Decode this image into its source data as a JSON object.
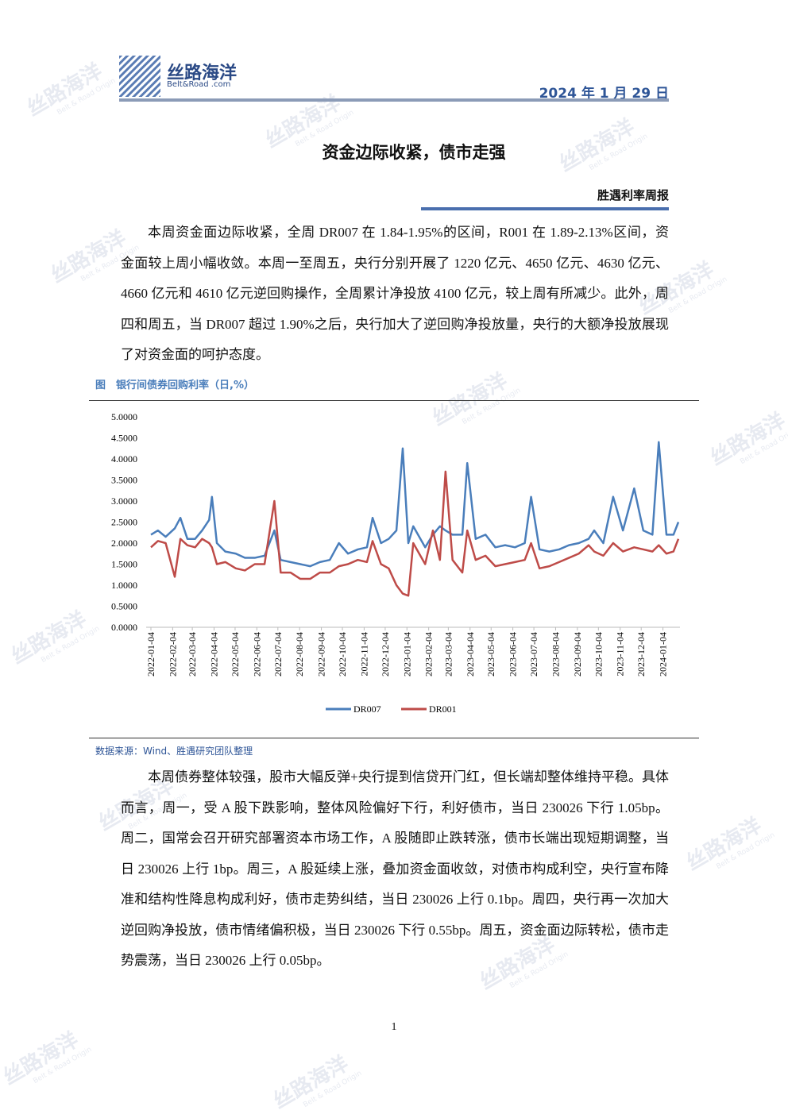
{
  "header": {
    "logo_cn": "丝路海洋",
    "logo_en": "Belt&Road .com",
    "date": "2024 年 1 月 29 日"
  },
  "watermark": {
    "cn": "丝路海洋",
    "en": "Belt & Road Origin"
  },
  "title": "资金边际收紧，债市走强",
  "column": "胜遇利率周报",
  "paragraphs": [
    "本周资金面边际收紧，全周 DR007 在 1.84-1.95%的区间，R001 在 1.89-2.13%区间，资金面较上周小幅收敛。本周一至周五，央行分别开展了 1220 亿元、4650 亿元、4630 亿元、4660 亿元和 4610 亿元逆回购操作，全周累计净投放 4100 亿元，较上周有所减少。此外，周四和周五，当 DR007 超过 1.90%之后，央行加大了逆回购净投放量，央行的大额净投放展现了对资金面的呵护态度。",
    "本周债券整体较强，股市大幅反弹+央行提到信贷开门红，但长端却整体维持平稳。具体而言，周一，受 A 股下跌影响，整体风险偏好下行，利好债市，当日 230026 下行 1.05bp。周二，国常会召开研究部署资本市场工作，A 股随即止跌转涨，债市长端出现短期调整，当日 230026 上行 1bp。周三，A 股延续上涨，叠加资金面收敛，对债市构成利空，央行宣布降准和结构性降息构成利好，债市走势纠结，当日 230026 上行 0.1bp。周四，央行再一次加大逆回购净投放，债市情绪偏积极，当日 230026 下行 0.55bp。周五，资金面边际转松，债市走势震荡，当日 230026 上行 0.05bp。"
  ],
  "figure_caption": "图　银行间债券回购利率（日,%）",
  "source": "数据来源：Wind、胜遇研究团队整理",
  "page_number": "1",
  "chart_data": {
    "type": "line",
    "x": [
      "2022-01-04",
      "2022-01-14",
      "2022-01-25",
      "2022-02-07",
      "2022-02-15",
      "2022-02-25",
      "2022-03-08",
      "2022-03-18",
      "2022-03-28",
      "2022-04-01",
      "2022-04-08",
      "2022-04-20",
      "2022-05-05",
      "2022-05-18",
      "2022-06-01",
      "2022-06-15",
      "2022-06-29",
      "2022-07-08",
      "2022-07-22",
      "2022-08-05",
      "2022-08-19",
      "2022-09-02",
      "2022-09-16",
      "2022-09-29",
      "2022-10-12",
      "2022-10-26",
      "2022-11-08",
      "2022-11-16",
      "2022-11-28",
      "2022-12-09",
      "2022-12-20",
      "2022-12-29",
      "2023-01-06",
      "2023-01-13",
      "2023-01-30",
      "2023-02-10",
      "2023-02-20",
      "2023-02-28",
      "2023-03-10",
      "2023-03-24",
      "2023-03-31",
      "2023-04-12",
      "2023-04-26",
      "2023-05-10",
      "2023-05-24",
      "2023-06-07",
      "2023-06-21",
      "2023-06-30",
      "2023-07-12",
      "2023-07-26",
      "2023-08-09",
      "2023-08-23",
      "2023-09-06",
      "2023-09-20",
      "2023-09-28",
      "2023-10-11",
      "2023-10-25",
      "2023-11-08",
      "2023-11-24",
      "2023-12-07",
      "2023-12-20",
      "2023-12-29",
      "2024-01-09",
      "2024-01-19",
      "2024-01-26"
    ],
    "series": [
      {
        "name": "DR007",
        "color": "#4a7ebb",
        "values": [
          2.2,
          2.3,
          2.15,
          2.35,
          2.6,
          2.1,
          2.1,
          2.3,
          2.55,
          3.1,
          2.0,
          1.8,
          1.75,
          1.65,
          1.65,
          1.7,
          2.3,
          1.6,
          1.55,
          1.5,
          1.45,
          1.55,
          1.6,
          2.0,
          1.75,
          1.85,
          1.9,
          2.6,
          2.0,
          2.1,
          2.3,
          4.25,
          2.0,
          2.4,
          1.9,
          2.2,
          2.4,
          2.3,
          2.2,
          2.2,
          3.9,
          2.1,
          2.2,
          1.9,
          1.95,
          1.9,
          2.0,
          3.1,
          1.85,
          1.8,
          1.85,
          1.95,
          2.0,
          2.1,
          2.3,
          2.0,
          3.1,
          2.3,
          3.3,
          2.3,
          2.2,
          4.4,
          2.2,
          2.2,
          2.5
        ]
      },
      {
        "name": "DR001",
        "color": "#be4b48",
        "values": [
          1.9,
          2.05,
          2.0,
          1.2,
          2.1,
          1.95,
          1.9,
          2.1,
          2.0,
          1.9,
          1.5,
          1.55,
          1.4,
          1.35,
          1.5,
          1.5,
          3.0,
          1.3,
          1.3,
          1.15,
          1.15,
          1.3,
          1.3,
          1.45,
          1.5,
          1.6,
          1.55,
          2.05,
          1.5,
          1.4,
          1.0,
          0.8,
          0.75,
          2.0,
          1.5,
          2.3,
          1.6,
          3.7,
          1.6,
          1.3,
          2.3,
          1.6,
          1.7,
          1.45,
          1.5,
          1.55,
          1.6,
          2.0,
          1.4,
          1.45,
          1.55,
          1.65,
          1.75,
          1.95,
          1.8,
          1.7,
          2.0,
          1.8,
          1.9,
          1.85,
          1.8,
          1.95,
          1.75,
          1.8,
          2.1
        ]
      }
    ],
    "xlim": [
      "2022-01-04",
      "2024-01-26"
    ],
    "xticks": [
      "2022-01-04",
      "2022-02-04",
      "2022-03-04",
      "2022-04-04",
      "2022-05-04",
      "2022-06-04",
      "2022-07-04",
      "2022-08-04",
      "2022-09-04",
      "2022-10-04",
      "2022-11-04",
      "2022-12-04",
      "2023-01-04",
      "2023-02-04",
      "2023-03-04",
      "2023-04-04",
      "2023-05-04",
      "2023-06-04",
      "2023-07-04",
      "2023-08-04",
      "2023-09-04",
      "2023-10-04",
      "2023-11-04",
      "2023-12-04",
      "2024-01-04"
    ],
    "ylim": [
      0,
      5
    ],
    "yticks": [
      {
        "value": 0,
        "label": "0.0000"
      },
      {
        "value": 0.5,
        "label": "0.5000"
      },
      {
        "value": 1,
        "label": "1.0000"
      },
      {
        "value": 1.5,
        "label": "1.5000"
      },
      {
        "value": 2,
        "label": "2.0000"
      },
      {
        "value": 2.5,
        "label": "2.5000"
      },
      {
        "value": 3,
        "label": "3.0000"
      },
      {
        "value": 3.5,
        "label": "3.5000"
      },
      {
        "value": 4,
        "label": "4.0000"
      },
      {
        "value": 4.5,
        "label": "4.5000"
      },
      {
        "value": 5,
        "label": "5.0000"
      }
    ],
    "grid": false,
    "legend": "bottom"
  }
}
